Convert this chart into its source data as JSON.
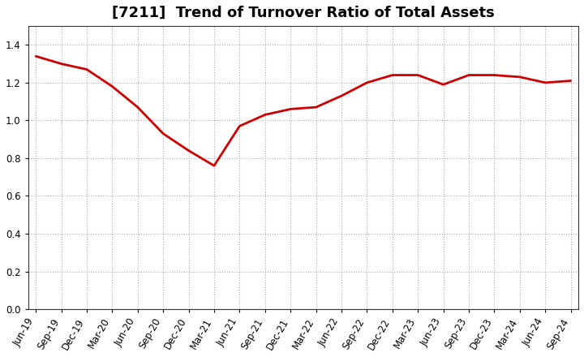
{
  "title": "[7211]  Trend of Turnover Ratio of Total Assets",
  "x_labels": [
    "Jun-19",
    "Sep-19",
    "Dec-19",
    "Mar-20",
    "Jun-20",
    "Sep-20",
    "Dec-20",
    "Mar-21",
    "Jun-21",
    "Sep-21",
    "Dec-21",
    "Mar-22",
    "Jun-22",
    "Sep-22",
    "Dec-22",
    "Mar-23",
    "Jun-23",
    "Sep-23",
    "Dec-23",
    "Mar-24",
    "Jun-24",
    "Sep-24"
  ],
  "y_values": [
    1.34,
    1.3,
    1.27,
    1.18,
    1.07,
    0.93,
    0.84,
    0.76,
    0.97,
    1.03,
    1.06,
    1.07,
    1.13,
    1.2,
    1.24,
    1.24,
    1.19,
    1.24,
    1.24,
    1.23,
    1.2,
    1.21
  ],
  "line_color": "#cc0000",
  "line_width": 2.0,
  "ylim": [
    0.0,
    1.5
  ],
  "yticks": [
    0.0,
    0.2,
    0.4,
    0.6,
    0.8,
    1.0,
    1.2,
    1.4
  ],
  "grid_color": "#aaaaaa",
  "grid_linestyle": ":",
  "grid_linewidth": 0.8,
  "bg_color": "#ffffff",
  "title_fontsize": 13,
  "tick_fontsize": 8.5,
  "xlabel_rotation": 60,
  "figsize": [
    7.2,
    4.4
  ],
  "dpi": 100
}
